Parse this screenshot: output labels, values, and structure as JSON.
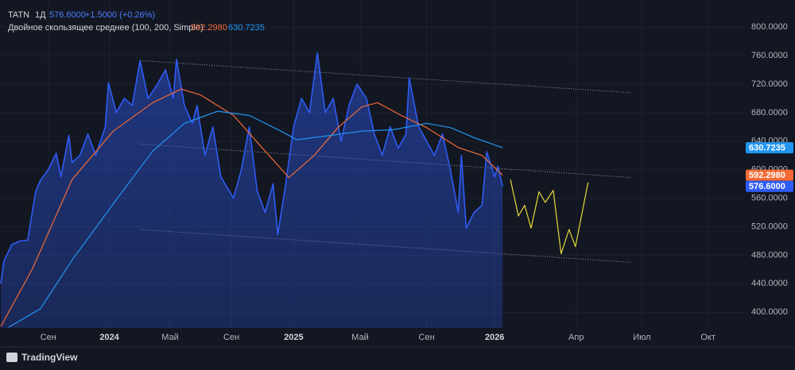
{
  "chart_data": {
    "type": "line",
    "legend": {
      "symbol": "TATN",
      "interval": "1Д",
      "last": "576.6000",
      "change": "+1.5000 (+0.26%)",
      "indicator": "Двойное скользящее среднее (100, 200, Simple)",
      "ma100": "592.2980",
      "ma200": "630.7235"
    },
    "brand": "TradingView",
    "xlim": [
      -3.05,
      43.96
    ],
    "ylim": [
      378,
      838
    ],
    "xticks": [
      {
        "value": 0,
        "label": "Сен"
      },
      {
        "value": 3.86,
        "label": "2024"
      },
      {
        "value": 7.7,
        "label": "Май"
      },
      {
        "value": 11.57,
        "label": "Сен"
      },
      {
        "value": 15.5,
        "label": "2025"
      },
      {
        "value": 19.7,
        "label": "Май"
      },
      {
        "value": 23.9,
        "label": "Сен"
      },
      {
        "value": 28.2,
        "label": "2026"
      },
      {
        "value": 33.35,
        "label": "Апр"
      },
      {
        "value": 37.5,
        "label": "Июл"
      },
      {
        "value": 41.68,
        "label": "Окт"
      }
    ],
    "yticks": [
      {
        "value": 400,
        "label": "400.0000"
      },
      {
        "value": 440,
        "label": "440.0000"
      },
      {
        "value": 480,
        "label": "480.0000"
      },
      {
        "value": 520,
        "label": "520.0000"
      },
      {
        "value": 560,
        "label": "560.0000"
      },
      {
        "value": 600,
        "label": "600.0000"
      },
      {
        "value": 640,
        "label": "640.0000"
      },
      {
        "value": 680,
        "label": "680.0000"
      },
      {
        "value": 720,
        "label": "720.0000"
      },
      {
        "value": 760,
        "label": "760.0000"
      },
      {
        "value": 800,
        "label": "800.0000"
      }
    ],
    "series": [
      {
        "name": "TATN",
        "color": "#2f5cf5",
        "area": true,
        "x": [
          -3.0,
          -2.8,
          -2.3,
          -1.8,
          -1.3,
          -0.8,
          -0.5,
          0,
          0.5,
          0.8,
          1.3,
          1.5,
          2.0,
          2.5,
          3.0,
          3.6,
          3.8,
          4.3,
          4.8,
          5.3,
          5.8,
          6.3,
          6.9,
          7.4,
          7.9,
          8.1,
          8.6,
          9.1,
          9.4,
          9.9,
          10.4,
          10.9,
          11.7,
          12.2,
          12.7,
          13.2,
          13.7,
          14.2,
          14.5,
          15.0,
          15.5,
          16.0,
          16.5,
          17.0,
          17.5,
          18.0,
          18.5,
          19.0,
          19.5,
          20.1,
          20.6,
          21.1,
          21.6,
          22.1,
          22.6,
          22.8,
          23.4,
          23.9,
          24.4,
          24.9,
          25.4,
          25.9,
          26.1,
          26.4,
          26.9,
          27.4,
          27.7,
          28.2,
          28.4,
          28.7
        ],
        "values": [
          440,
          472,
          495,
          500,
          501,
          569,
          585,
          600,
          623,
          590,
          648,
          610,
          620,
          650,
          620,
          660,
          722,
          680,
          700,
          690,
          753,
          700,
          720,
          740,
          700,
          755,
          690,
          665,
          690,
          620,
          660,
          590,
          560,
          600,
          660,
          570,
          540,
          580,
          509,
          580,
          660,
          700,
          680,
          764,
          680,
          700,
          640,
          690,
          720,
          700,
          650,
          620,
          660,
          630,
          650,
          729,
          660,
          640,
          620,
          650,
          600,
          540,
          620,
          518,
          540,
          550,
          625,
          590,
          605,
          576.6
        ]
      },
      {
        "color": "#f26b36",
        "x": [
          -3.0,
          -1.0,
          1.5,
          4.1,
          6.6,
          8.4,
          9.6,
          11.7,
          13.7,
          15.2,
          16.8,
          18.3,
          19.8,
          20.8,
          22.3,
          23.9,
          25.9,
          27.4,
          28.7
        ],
        "values": [
          380,
          461,
          586,
          654,
          694,
          713,
          705,
          676,
          626,
          589,
          620,
          659,
          688,
          694,
          676,
          659,
          631,
          620,
          592.298
        ]
      },
      {
        "color": "#2196f3",
        "x": [
          -2.5,
          -0.5,
          1.5,
          4.1,
          6.6,
          8.6,
          10.7,
          12.7,
          14.7,
          15.7,
          17.8,
          19.8,
          21.8,
          23.9,
          25.4,
          26.9,
          28.7
        ],
        "values": [
          379,
          405,
          473,
          552,
          626,
          665,
          682,
          676,
          654,
          642,
          648,
          654,
          656,
          665,
          659,
          645,
          630.7235
        ]
      },
      {
        "color": "#e6d93a",
        "x": [
          29.2,
          29.7,
          30.1,
          30.5,
          31.0,
          31.4,
          31.9,
          32.4,
          32.9,
          33.3,
          34.1
        ],
        "values": [
          586,
          535,
          550,
          518,
          569,
          554,
          571,
          482,
          516,
          492,
          582
        ]
      }
    ],
    "channel": {
      "color": "#9598a1",
      "lines": [
        {
          "x": [
            5.8,
            36.8
          ],
          "values": [
            753,
            708
          ]
        },
        {
          "x": [
            5.8,
            36.8
          ],
          "values": [
            636,
            589
          ]
        },
        {
          "x": [
            5.8,
            36.8
          ],
          "values": [
            516,
            470
          ]
        }
      ]
    }
  }
}
